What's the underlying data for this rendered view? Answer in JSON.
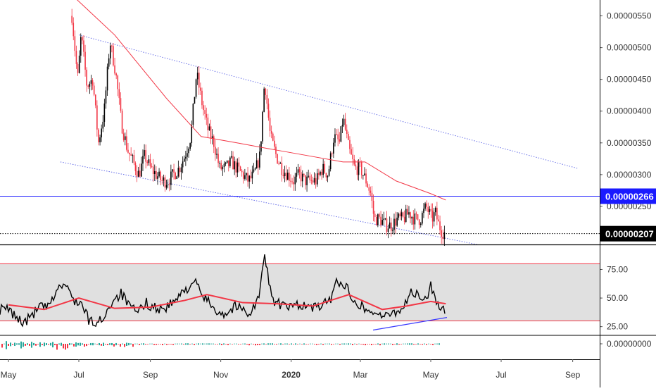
{
  "chart_data": [
    {
      "panel": "price",
      "type": "candlestick",
      "series": [
        {
          "name": "",
          "type": "candlestick",
          "color_up": "#000000",
          "color_down": "#f23645"
        },
        {
          "name": "",
          "type": "line",
          "color": "#f23645",
          "points": [
            [
              "2019-06-15",
              6e-06
            ],
            [
              "2019-08-01",
              5.2e-06
            ],
            [
              "2019-09-15",
              4.2e-06
            ],
            [
              "2019-10-15",
              3.6e-06
            ],
            [
              "2019-11-15",
              3.5e-06
            ],
            [
              "2019-12-15",
              3.4e-06
            ],
            [
              "2020-01-15",
              3.3e-06
            ],
            [
              "2020-02-15",
              3.2e-06
            ],
            [
              "2020-03-05",
              3.2e-06
            ],
            [
              "2020-04-01",
              2.9e-06
            ],
            [
              "2020-05-01",
              2.7e-06
            ],
            [
              "2020-05-14",
              2.6e-06
            ]
          ]
        }
      ],
      "close_points": [
        [
          "2019-06-25",
          5.5e-06
        ],
        [
          "2019-06-30",
          4.5e-06
        ],
        [
          "2019-07-03",
          5.2e-06
        ],
        [
          "2019-07-08",
          4.4e-06
        ],
        [
          "2019-07-13",
          4.5e-06
        ],
        [
          "2019-07-18",
          3.5e-06
        ],
        [
          "2019-07-23",
          4e-06
        ],
        [
          "2019-07-28",
          5.1e-06
        ],
        [
          "2019-08-02",
          4.6e-06
        ],
        [
          "2019-08-07",
          3.8e-06
        ],
        [
          "2019-08-12",
          3.4e-06
        ],
        [
          "2019-08-17",
          3.2e-06
        ],
        [
          "2019-08-22",
          3e-06
        ],
        [
          "2019-08-27",
          3.3e-06
        ],
        [
          "2019-09-01",
          3.1e-06
        ],
        [
          "2019-09-06",
          3e-06
        ],
        [
          "2019-09-11",
          2.9e-06
        ],
        [
          "2019-09-16",
          2.9e-06
        ],
        [
          "2019-09-21",
          3e-06
        ],
        [
          "2019-09-26",
          3.1e-06
        ],
        [
          "2019-10-01",
          3.3e-06
        ],
        [
          "2019-10-06",
          3.6e-06
        ],
        [
          "2019-10-11",
          4.6e-06
        ],
        [
          "2019-10-16",
          4.1e-06
        ],
        [
          "2019-10-21",
          3.7e-06
        ],
        [
          "2019-10-26",
          3.5e-06
        ],
        [
          "2019-10-31",
          3.1e-06
        ],
        [
          "2019-11-05",
          3.1e-06
        ],
        [
          "2019-11-10",
          3.2e-06
        ],
        [
          "2019-11-15",
          3.1e-06
        ],
        [
          "2019-11-20",
          3e-06
        ],
        [
          "2019-11-25",
          2.9e-06
        ],
        [
          "2019-11-30",
          3e-06
        ],
        [
          "2019-12-05",
          3.3e-06
        ],
        [
          "2019-12-09",
          4.5e-06
        ],
        [
          "2019-12-14",
          3.6e-06
        ],
        [
          "2019-12-19",
          3.3e-06
        ],
        [
          "2019-12-24",
          3.1e-06
        ],
        [
          "2019-12-29",
          3e-06
        ],
        [
          "2020-01-03",
          2.9e-06
        ],
        [
          "2020-01-08",
          3e-06
        ],
        [
          "2020-01-13",
          2.9e-06
        ],
        [
          "2020-01-18",
          2.9e-06
        ],
        [
          "2020-01-23",
          2.9e-06
        ],
        [
          "2020-01-28",
          3.1e-06
        ],
        [
          "2020-02-02",
          3e-06
        ],
        [
          "2020-02-07",
          3.6e-06
        ],
        [
          "2020-02-12",
          3.5e-06
        ],
        [
          "2020-02-15",
          3.9e-06
        ],
        [
          "2020-02-20",
          3.4e-06
        ],
        [
          "2020-02-25",
          3.1e-06
        ],
        [
          "2020-03-01",
          3.1e-06
        ],
        [
          "2020-03-06",
          2.9e-06
        ],
        [
          "2020-03-10",
          2.7e-06
        ],
        [
          "2020-03-13",
          2.3e-06
        ],
        [
          "2020-03-18",
          2.3e-06
        ],
        [
          "2020-03-23",
          2.2e-06
        ],
        [
          "2020-03-28",
          2.2e-06
        ],
        [
          "2020-04-02",
          2.3e-06
        ],
        [
          "2020-04-07",
          2.3e-06
        ],
        [
          "2020-04-12",
          2.4e-06
        ],
        [
          "2020-04-17",
          2.3e-06
        ],
        [
          "2020-04-22",
          2.3e-06
        ],
        [
          "2020-04-27",
          2.5e-06
        ],
        [
          "2020-05-02",
          2.3e-06
        ],
        [
          "2020-05-05",
          2.4e-06
        ],
        [
          "2020-05-08",
          2.2e-06
        ],
        [
          "2020-05-11",
          2.1e-06
        ],
        [
          "2020-05-14",
          2.07e-06
        ]
      ],
      "trend_lines": [
        {
          "role": "upper-channel",
          "style": "dotted",
          "color": "#6870e8",
          "from": [
            "2019-07-01",
            5.2e-06
          ],
          "to": [
            "2020-09-05",
            3.1e-06
          ]
        },
        {
          "role": "lower-channel",
          "style": "dotted",
          "color": "#6870e8",
          "from": [
            "2019-06-15",
            3.2e-06
          ],
          "to": [
            "2020-06-10",
            1.9e-06
          ]
        }
      ],
      "horizontal_lines": [
        {
          "value": 2.66e-06,
          "label": "0.00000266",
          "color": "#1a1aff",
          "style": "solid"
        },
        {
          "value": 2.07e-06,
          "label": "0.00000207",
          "color": "#000000",
          "style": "dotted"
        }
      ],
      "y_ticks": [
        "0.00000550",
        "0.00000500",
        "0.00000450",
        "0.00000400",
        "0.00000350",
        "0.00000300",
        "0.00000250"
      ],
      "ylim": [
        1.9e-06,
        5.75e-06
      ],
      "grid": false
    },
    {
      "panel": "oscillator",
      "type": "line",
      "band": {
        "upper": 80,
        "lower": 30,
        "color": "#e0e0e0",
        "border_color": "#f23645"
      },
      "series": [
        {
          "name": "",
          "color": "#000000",
          "points": [
            [
              "2019-05-01",
              40
            ],
            [
              "2019-05-08",
              33
            ],
            [
              "2019-05-15",
              28
            ],
            [
              "2019-05-22",
              36
            ],
            [
              "2019-05-29",
              43
            ],
            [
              "2019-06-05",
              41
            ],
            [
              "2019-06-12",
              58
            ],
            [
              "2019-06-19",
              62
            ],
            [
              "2019-06-26",
              49
            ],
            [
              "2019-07-03",
              45
            ],
            [
              "2019-07-10",
              30
            ],
            [
              "2019-07-17",
              27
            ],
            [
              "2019-07-24",
              36
            ],
            [
              "2019-07-31",
              49
            ],
            [
              "2019-08-07",
              54
            ],
            [
              "2019-08-14",
              42
            ],
            [
              "2019-08-21",
              37
            ],
            [
              "2019-08-28",
              46
            ],
            [
              "2019-09-04",
              42
            ],
            [
              "2019-09-11",
              40
            ],
            [
              "2019-09-18",
              44
            ],
            [
              "2019-09-25",
              50
            ],
            [
              "2019-10-02",
              58
            ],
            [
              "2019-10-09",
              65
            ],
            [
              "2019-10-16",
              52
            ],
            [
              "2019-10-23",
              45
            ],
            [
              "2019-10-30",
              38
            ],
            [
              "2019-11-06",
              36
            ],
            [
              "2019-11-13",
              43
            ],
            [
              "2019-11-20",
              40
            ],
            [
              "2019-11-27",
              37
            ],
            [
              "2019-12-04",
              51
            ],
            [
              "2019-12-09",
              86
            ],
            [
              "2019-12-16",
              48
            ],
            [
              "2019-12-23",
              44
            ],
            [
              "2019-12-30",
              41
            ],
            [
              "2020-01-06",
              45
            ],
            [
              "2020-01-13",
              43
            ],
            [
              "2020-01-20",
              41
            ],
            [
              "2020-01-27",
              44
            ],
            [
              "2020-02-03",
              46
            ],
            [
              "2020-02-10",
              66
            ],
            [
              "2020-02-17",
              60
            ],
            [
              "2020-02-24",
              50
            ],
            [
              "2020-03-02",
              43
            ],
            [
              "2020-03-09",
              38
            ],
            [
              "2020-03-16",
              37
            ],
            [
              "2020-03-23",
              33
            ],
            [
              "2020-03-30",
              38
            ],
            [
              "2020-04-06",
              40
            ],
            [
              "2020-04-13",
              55
            ],
            [
              "2020-04-20",
              52
            ],
            [
              "2020-04-27",
              47
            ],
            [
              "2020-05-01",
              63
            ],
            [
              "2020-05-06",
              45
            ],
            [
              "2020-05-11",
              37
            ],
            [
              "2020-05-14",
              42
            ]
          ]
        },
        {
          "name": "",
          "color": "#f23645",
          "points": [
            [
              "2019-05-01",
              44
            ],
            [
              "2019-06-01",
              40
            ],
            [
              "2019-07-01",
              50
            ],
            [
              "2019-08-01",
              41
            ],
            [
              "2019-09-01",
              42
            ],
            [
              "2019-10-01",
              48
            ],
            [
              "2019-10-20",
              53
            ],
            [
              "2019-11-20",
              46
            ],
            [
              "2019-12-20",
              45
            ],
            [
              "2020-01-20",
              43
            ],
            [
              "2020-02-20",
              53
            ],
            [
              "2020-03-20",
              40
            ],
            [
              "2020-04-10",
              43
            ],
            [
              "2020-05-01",
              47
            ],
            [
              "2020-05-14",
              45
            ]
          ]
        }
      ],
      "trend_line": {
        "color": "#3a3aff",
        "from": [
          "2020-03-12",
          22
        ],
        "to": [
          "2020-05-15",
          33
        ]
      },
      "y_ticks": [
        "75.00",
        "50.00",
        "25.00"
      ],
      "ylim": [
        18,
        95
      ],
      "grid": false
    },
    {
      "panel": "histogram",
      "type": "bar",
      "colors": {
        "positive": "#26a69a",
        "negative": "#f23645"
      },
      "y_ticks": [
        "0.00000000"
      ],
      "note": "small bars around zero"
    }
  ],
  "x_axis": {
    "ticks": [
      {
        "label": "May",
        "date": "2019-05-01"
      },
      {
        "label": "Jul",
        "date": "2019-07-01"
      },
      {
        "label": "Sep",
        "date": "2019-09-01"
      },
      {
        "label": "Nov",
        "date": "2019-11-01"
      },
      {
        "label": "2020",
        "date": "2020-01-01",
        "bold": true
      },
      {
        "label": "Mar",
        "date": "2020-03-01"
      },
      {
        "label": "May",
        "date": "2020-05-01"
      },
      {
        "label": "Jul",
        "date": "2020-07-01"
      },
      {
        "label": "Sep",
        "date": "2020-09-01"
      }
    ]
  }
}
